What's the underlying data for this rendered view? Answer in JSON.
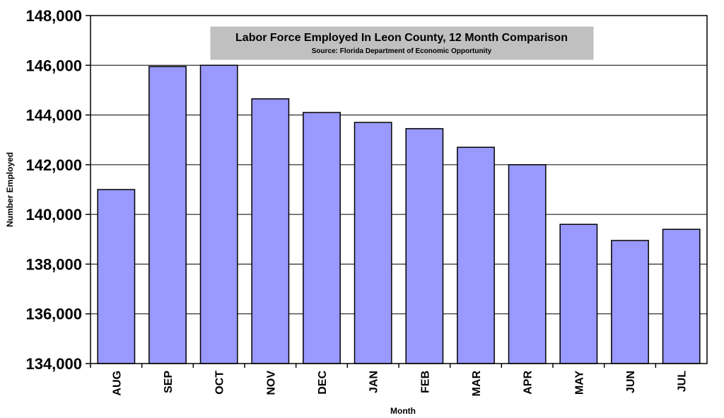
{
  "chart_data": {
    "type": "bar",
    "title": "Labor Force Employed In Leon County, 12 Month Comparison",
    "subtitle": "Source: Florida Department of Economic Opportunity",
    "xlabel": "Month",
    "ylabel": "Number Employed",
    "categories": [
      "AUG",
      "SEP",
      "OCT",
      "NOV",
      "DEC",
      "JAN",
      "FEB",
      "MAR",
      "APR",
      "MAY",
      "JUN",
      "JUL"
    ],
    "values": [
      141000,
      145950,
      146000,
      144650,
      144100,
      143700,
      143450,
      142700,
      142000,
      139600,
      138950,
      139400
    ],
    "ylim": [
      134000,
      148000
    ],
    "yticks": [
      134000,
      136000,
      138000,
      140000,
      142000,
      144000,
      146000,
      148000
    ],
    "ytick_labels": [
      "134,000",
      "136,000",
      "138,000",
      "140,000",
      "142,000",
      "144,000",
      "146,000",
      "148,000"
    ],
    "grid": true,
    "legend": "none",
    "colors": {
      "bar_fill": "#9999ff",
      "bar_stroke": "#000000",
      "title_box": "#c0c0c0",
      "plot_background": "#ffffff",
      "gridline": "#000000"
    }
  }
}
